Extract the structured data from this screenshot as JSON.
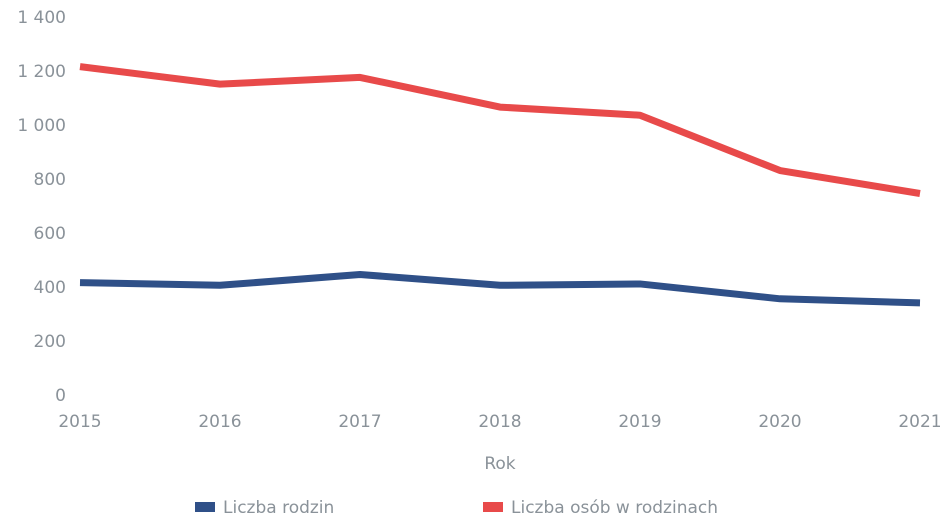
{
  "chart_data": {
    "type": "line",
    "x_label": "Rok",
    "categories": [
      "2015",
      "2016",
      "2017",
      "2018",
      "2019",
      "2020",
      "2021"
    ],
    "series": [
      {
        "name": "Liczba rodzin",
        "color": "#2f5088",
        "values": [
          420,
          410,
          450,
          410,
          415,
          360,
          345
        ]
      },
      {
        "name": "Liczba osób w rodzinach",
        "color": "#e84a4a",
        "values": [
          1220,
          1155,
          1180,
          1070,
          1040,
          835,
          750
        ]
      }
    ],
    "ylim": [
      0,
      1400
    ],
    "yticks": [
      0,
      200,
      400,
      600,
      800,
      {
        "value": 1000,
        "label": "1 000"
      },
      {
        "value": 1200,
        "label": "1 200"
      },
      {
        "value": 1400,
        "label": "1 400"
      }
    ],
    "grid": false,
    "legend": "bottom"
  }
}
